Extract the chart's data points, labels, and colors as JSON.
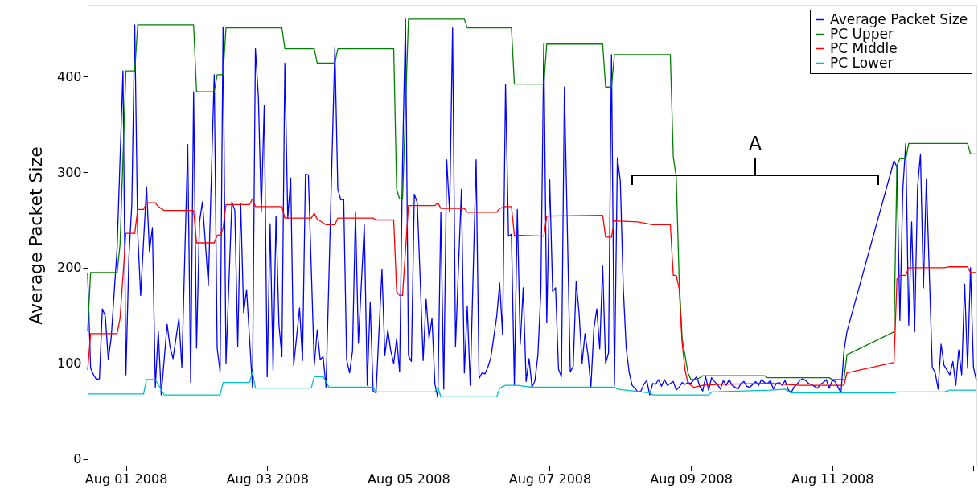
{
  "chart_data": {
    "type": "line",
    "ylabel": "Average Packet Size",
    "xlim": [
      "2008-07-31T11:00",
      "2008-08-13T01:00"
    ],
    "ylim": [
      -7,
      475
    ],
    "xticks": [
      {
        "value": "2008-08-01T00:00",
        "label": "Aug 01 2008"
      },
      {
        "value": "2008-08-03T00:00",
        "label": "Aug 03 2008"
      },
      {
        "value": "2008-08-05T00:00",
        "label": "Aug 05 2008"
      },
      {
        "value": "2008-08-07T00:00",
        "label": "Aug 07 2008"
      },
      {
        "value": "2008-08-09T00:00",
        "label": "Aug 09 2008"
      },
      {
        "value": "2008-08-11T00:00",
        "label": "Aug 11 2008"
      },
      {
        "value": "2008-08-13T00:00",
        "label": null
      }
    ],
    "yticks": [
      0,
      100,
      200,
      300,
      400
    ],
    "grid": false,
    "legend": "top right",
    "marker": "none",
    "line_style": "solid",
    "annotations": [
      "A"
    ],
    "series": [
      {
        "name": "Average Packet Size",
        "color": "#0000ff",
        "x": [
          "2008-07-31T11:00",
          "2008-07-31T12:00",
          "2008-07-31T13:00",
          "2008-07-31T14:00",
          "2008-07-31T15:00",
          "2008-07-31T16:00",
          "2008-07-31T17:00",
          "2008-07-31T18:00",
          "2008-07-31T19:00",
          "2008-07-31T21:00",
          "2008-07-31T23:00",
          "2008-08-01T00:00",
          "2008-08-01T01:00",
          "2008-08-01T02:00",
          "2008-08-01T03:00",
          "2008-08-01T04:00",
          "2008-08-01T05:00",
          "2008-08-01T07:00",
          "2008-08-01T08:00",
          "2008-08-01T09:00",
          "2008-08-01T10:00",
          "2008-08-01T11:00",
          "2008-08-01T12:00",
          "2008-08-01T14:00",
          "2008-08-01T15:00",
          "2008-08-01T16:00",
          "2008-08-01T18:00",
          "2008-08-01T19:00",
          "2008-08-01T21:00",
          "2008-08-01T22:00",
          "2008-08-01T23:00",
          "2008-08-02T00:00",
          "2008-08-02T01:00",
          "2008-08-02T02:00",
          "2008-08-02T04:00",
          "2008-08-02T06:00",
          "2008-08-02T07:00",
          "2008-08-02T08:00",
          "2008-08-02T09:00",
          "2008-08-02T10:00",
          "2008-08-02T12:00",
          "2008-08-02T13:00",
          "2008-08-02T14:00",
          "2008-08-02T15:00",
          "2008-08-02T16:00",
          "2008-08-02T17:00",
          "2008-08-02T19:00",
          "2008-08-02T20:00",
          "2008-08-02T21:00",
          "2008-08-02T22:00",
          "2008-08-02T23:00",
          "2008-08-03T00:00",
          "2008-08-03T01:00",
          "2008-08-03T02:00",
          "2008-08-03T03:00",
          "2008-08-03T04:00",
          "2008-08-03T05:00",
          "2008-08-03T06:00",
          "2008-08-03T07:00",
          "2008-08-03T08:00",
          "2008-08-03T09:00",
          "2008-08-03T11:00",
          "2008-08-03T12:00",
          "2008-08-03T13:00",
          "2008-08-03T14:00",
          "2008-08-03T16:00",
          "2008-08-03T17:00",
          "2008-08-03T18:00",
          "2008-08-03T19:00",
          "2008-08-03T20:00",
          "2008-08-03T23:00",
          "2008-08-04T00:00",
          "2008-08-04T01:00",
          "2008-08-04T02:00",
          "2008-08-04T03:00",
          "2008-08-04T04:00",
          "2008-08-04T05:00",
          "2008-08-04T06:00",
          "2008-08-04T07:00",
          "2008-08-04T09:00",
          "2008-08-04T10:00",
          "2008-08-04T11:00",
          "2008-08-04T12:00",
          "2008-08-04T13:00",
          "2008-08-04T15:00",
          "2008-08-04T16:00",
          "2008-08-04T17:00",
          "2008-08-04T18:00",
          "2008-08-04T19:00",
          "2008-08-04T20:00",
          "2008-08-04T21:00",
          "2008-08-04T22:00",
          "2008-08-04T23:00",
          "2008-08-05T00:00",
          "2008-08-05T01:00",
          "2008-08-05T02:00",
          "2008-08-05T03:00",
          "2008-08-05T04:00",
          "2008-08-05T05:00",
          "2008-08-05T06:00",
          "2008-08-05T07:00",
          "2008-08-05T08:00",
          "2008-08-05T09:00",
          "2008-08-05T10:00",
          "2008-08-05T11:00",
          "2008-08-05T12:00",
          "2008-08-05T13:00",
          "2008-08-05T14:00",
          "2008-08-05T15:00",
          "2008-08-05T16:00",
          "2008-08-05T18:00",
          "2008-08-05T19:00",
          "2008-08-05T20:00",
          "2008-08-05T21:00",
          "2008-08-05T23:00",
          "2008-08-06T00:00",
          "2008-08-06T01:00",
          "2008-08-06T02:00",
          "2008-08-06T03:00",
          "2008-08-06T04:00",
          "2008-08-06T06:00",
          "2008-08-06T07:00",
          "2008-08-06T08:00",
          "2008-08-06T09:00",
          "2008-08-06T10:00",
          "2008-08-06T11:00",
          "2008-08-06T12:00",
          "2008-08-06T13:00",
          "2008-08-06T14:00",
          "2008-08-06T15:00",
          "2008-08-06T16:00",
          "2008-08-06T17:00",
          "2008-08-06T18:00",
          "2008-08-06T19:00",
          "2008-08-06T20:00",
          "2008-08-06T21:00",
          "2008-08-06T22:00",
          "2008-08-06T23:00",
          "2008-08-07T00:00",
          "2008-08-07T01:00",
          "2008-08-07T02:00",
          "2008-08-07T03:00",
          "2008-08-07T04:00",
          "2008-08-07T05:00",
          "2008-08-07T07:00",
          "2008-08-07T08:00",
          "2008-08-07T09:00",
          "2008-08-07T10:00",
          "2008-08-07T11:00",
          "2008-08-07T12:00",
          "2008-08-07T13:00",
          "2008-08-07T14:00",
          "2008-08-07T15:00",
          "2008-08-07T16:00",
          "2008-08-07T17:00",
          "2008-08-07T18:00",
          "2008-08-07T19:00",
          "2008-08-07T20:00",
          "2008-08-07T21:00",
          "2008-08-07T22:00",
          "2008-08-07T23:00",
          "2008-08-08T00:00",
          "2008-08-08T01:00",
          "2008-08-08T02:00",
          "2008-08-08T03:00",
          "2008-08-08T04:00",
          "2008-08-08T05:00",
          "2008-08-08T06:00",
          "2008-08-08T07:00",
          "2008-08-08T08:00",
          "2008-08-08T09:00",
          "2008-08-08T10:00",
          "2008-08-08T11:00",
          "2008-08-08T12:00",
          "2008-08-08T13:00",
          "2008-08-08T14:00",
          "2008-08-08T15:00",
          "2008-08-08T16:00",
          "2008-08-08T17:00",
          "2008-08-08T18:00",
          "2008-08-08T19:00",
          "2008-08-08T20:00",
          "2008-08-08T21:00",
          "2008-08-08T22:00",
          "2008-08-08T23:00",
          "2008-08-09T00:00",
          "2008-08-09T01:00",
          "2008-08-09T02:00",
          "2008-08-09T03:00",
          "2008-08-09T04:00",
          "2008-08-09T05:00",
          "2008-08-09T06:00",
          "2008-08-09T07:00",
          "2008-08-09T08:00",
          "2008-08-09T09:00",
          "2008-08-09T10:00",
          "2008-08-09T11:00",
          "2008-08-09T12:00",
          "2008-08-09T13:00",
          "2008-08-09T14:00",
          "2008-08-09T16:00",
          "2008-08-09T17:00",
          "2008-08-09T18:00",
          "2008-08-09T19:00",
          "2008-08-09T20:00",
          "2008-08-09T21:00",
          "2008-08-09T22:00",
          "2008-08-09T23:00",
          "2008-08-10T00:00",
          "2008-08-10T01:00",
          "2008-08-10T02:00",
          "2008-08-10T03:00",
          "2008-08-10T04:00",
          "2008-08-10T05:00",
          "2008-08-10T06:00",
          "2008-08-10T07:00",
          "2008-08-10T08:00",
          "2008-08-10T09:00",
          "2008-08-10T10:00",
          "2008-08-10T11:00",
          "2008-08-10T12:00",
          "2008-08-10T13:00",
          "2008-08-10T14:00",
          "2008-08-10T15:00",
          "2008-08-10T16:00",
          "2008-08-10T18:00",
          "2008-08-10T19:00",
          "2008-08-10T20:00",
          "2008-08-10T21:00",
          "2008-08-10T22:00",
          "2008-08-10T23:00",
          "2008-08-11T00:00",
          "2008-08-11T01:00",
          "2008-08-11T03:00",
          "2008-08-11T04:00",
          "2008-08-11T05:00",
          "2008-08-11T21:00",
          "2008-08-11T22:00",
          "2008-08-11T23:00",
          "2008-08-12T00:00",
          "2008-08-12T01:00",
          "2008-08-12T02:00",
          "2008-08-12T03:00",
          "2008-08-12T04:00",
          "2008-08-12T05:00",
          "2008-08-12T06:00",
          "2008-08-12T07:00",
          "2008-08-12T08:00",
          "2008-08-12T10:00",
          "2008-08-12T11:00",
          "2008-08-12T12:00",
          "2008-08-12T13:00",
          "2008-08-12T14:00",
          "2008-08-12T15:00",
          "2008-08-12T16:00",
          "2008-08-12T17:00",
          "2008-08-12T18:00",
          "2008-08-12T19:00",
          "2008-08-12T20:00",
          "2008-08-12T21:00",
          "2008-08-12T22:00",
          "2008-08-12T23:00",
          "2008-08-13T00:00",
          "2008-08-13T01:00"
        ],
        "values": [
          194,
          95,
          88,
          83,
          84,
          157,
          149,
          104,
          127,
          220,
          406,
          88,
          210,
          266,
          454,
          237,
          171,
          285,
          217,
          242,
          75,
          134,
          67,
          141,
          117,
          105,
          147,
          96,
          329,
          80,
          384,
          116,
          248,
          269,
          182,
          402,
          116,
          91,
          452,
          100,
          269,
          260,
          118,
          267,
          153,
          177,
          75,
          429,
          379,
          259,
          370,
          86,
          246,
          93,
          254,
          140,
          107,
          414,
          252,
          294,
          98,
          158,
          103,
          298,
          297,
          98,
          135,
          104,
          107,
          75,
          430,
          282,
          271,
          272,
          104,
          90,
          113,
          258,
          121,
          245,
          77,
          164,
          71,
          69,
          198,
          108,
          135,
          113,
          100,
          126,
          91,
          312,
          460,
          108,
          102,
          277,
          268,
          188,
          103,
          167,
          126,
          147,
          78,
          64,
          258,
          73,
          313,
          258,
          451,
          118,
          282,
          90,
          160,
          77,
          313,
          84,
          90,
          89,
          96,
          106,
          149,
          184,
          130,
          392,
          233,
          235,
          77,
          261,
          120,
          179,
          81,
          105,
          75,
          82,
          109,
          176,
          434,
          143,
          292,
          175,
          179,
          94,
          86,
          389,
          91,
          97,
          186,
          152,
          100,
          131,
          109,
          75,
          136,
          157,
          115,
          202,
          100,
          111,
          423,
          77,
          315,
          291,
          179,
          116,
          91,
          77,
          74,
          70,
          71,
          78,
          82,
          67,
          79,
          78,
          83,
          76,
          83,
          77,
          79,
          81,
          72,
          75,
          80,
          78,
          80,
          79,
          83,
          86,
          76,
          71,
          86,
          72,
          85,
          81,
          78,
          73,
          82,
          77,
          83,
          77,
          73,
          79,
          81,
          76,
          75,
          78,
          81,
          77,
          83,
          80,
          79,
          82,
          73,
          79,
          80,
          77,
          82,
          73,
          69,
          75,
          78,
          82,
          84,
          82,
          79,
          76,
          74,
          78,
          80,
          83,
          74,
          82,
          81,
          69,
          113,
          133,
          312,
          305,
          145,
          282,
          330,
          140,
          248,
          133,
          284,
          319,
          179,
          293,
          96,
          90,
          73,
          120,
          98,
          93,
          88,
          102,
          77,
          114,
          88,
          183,
          95,
          200,
          96,
          82
        ]
      },
      {
        "name": "PC Upper",
        "color": "#008000",
        "x": [
          "2008-07-31T11:00",
          "2008-07-31T12:00",
          "2008-07-31T21:00",
          "2008-07-31T22:00",
          "2008-08-01T00:00",
          "2008-08-01T03:00",
          "2008-08-01T04:00",
          "2008-08-01T23:00",
          "2008-08-02T00:00",
          "2008-08-02T06:00",
          "2008-08-02T07:00",
          "2008-08-02T09:00",
          "2008-08-02T10:00",
          "2008-08-03T05:00",
          "2008-08-03T06:00",
          "2008-08-03T16:00",
          "2008-08-03T17:00",
          "2008-08-03T23:00",
          "2008-08-04T00:00",
          "2008-08-04T19:00",
          "2008-08-04T20:00",
          "2008-08-04T21:00",
          "2008-08-04T22:00",
          "2008-08-05T00:00",
          "2008-08-05T19:00",
          "2008-08-05T20:00",
          "2008-08-06T11:00",
          "2008-08-06T12:00",
          "2008-08-06T22:00",
          "2008-08-06T23:00",
          "2008-08-07T18:00",
          "2008-08-07T19:00",
          "2008-08-07T21:00",
          "2008-08-07T22:00",
          "2008-08-08T17:00",
          "2008-08-08T18:00",
          "2008-08-08T19:00",
          "2008-08-08T20:00",
          "2008-08-08T21:00",
          "2008-08-08T23:00",
          "2008-08-09T00:00",
          "2008-08-09T02:00",
          "2008-08-09T04:00",
          "2008-08-10T01:00",
          "2008-08-10T02:00",
          "2008-08-10T23:00",
          "2008-08-11T00:00",
          "2008-08-11T04:00",
          "2008-08-11T05:00",
          "2008-08-11T21:00",
          "2008-08-11T22:00",
          "2008-08-11T23:00",
          "2008-08-12T01:00",
          "2008-08-12T02:00",
          "2008-08-12T22:00",
          "2008-08-12T23:00",
          "2008-08-13T01:00"
        ],
        "values": [
          134,
          195,
          195,
          224,
          406,
          406,
          454,
          454,
          384,
          384,
          402,
          402,
          451,
          451,
          429,
          429,
          414,
          414,
          429,
          429,
          282,
          272,
          272,
          460,
          460,
          451,
          451,
          392,
          392,
          434,
          434,
          389,
          389,
          423,
          423,
          316,
          295,
          188,
          126,
          90,
          83,
          83,
          87,
          87,
          85,
          85,
          83,
          83,
          109,
          133,
          307,
          314,
          314,
          330,
          330,
          319,
          319
        ]
      },
      {
        "name": "PC Middle",
        "color": "#ff0000",
        "x": [
          "2008-07-31T11:00",
          "2008-07-31T12:00",
          "2008-07-31T21:00",
          "2008-07-31T22:00",
          "2008-08-01T00:00",
          "2008-08-01T03:00",
          "2008-08-01T04:00",
          "2008-08-01T06:00",
          "2008-08-01T07:00",
          "2008-08-01T10:00",
          "2008-08-01T11:00",
          "2008-08-01T13:00",
          "2008-08-01T23:00",
          "2008-08-02T00:00",
          "2008-08-02T06:00",
          "2008-08-02T07:00",
          "2008-08-02T08:00",
          "2008-08-02T09:00",
          "2008-08-02T10:00",
          "2008-08-02T18:00",
          "2008-08-02T19:00",
          "2008-08-02T20:00",
          "2008-08-03T05:00",
          "2008-08-03T06:00",
          "2008-08-03T15:00",
          "2008-08-03T16:00",
          "2008-08-03T17:00",
          "2008-08-03T20:00",
          "2008-08-03T23:00",
          "2008-08-04T00:00",
          "2008-08-04T12:00",
          "2008-08-04T13:00",
          "2008-08-04T19:00",
          "2008-08-04T20:00",
          "2008-08-04T21:00",
          "2008-08-04T22:00",
          "2008-08-05T00:00",
          "2008-08-05T09:00",
          "2008-08-05T10:00",
          "2008-08-05T11:00",
          "2008-08-05T19:00",
          "2008-08-05T20:00",
          "2008-08-06T06:00",
          "2008-08-06T07:00",
          "2008-08-06T09:00",
          "2008-08-06T11:00",
          "2008-08-06T12:00",
          "2008-08-06T22:00",
          "2008-08-06T23:00",
          "2008-08-07T18:00",
          "2008-08-07T19:00",
          "2008-08-07T21:00",
          "2008-08-07T22:00",
          "2008-08-08T06:00",
          "2008-08-08T11:00",
          "2008-08-08T17:00",
          "2008-08-08T18:00",
          "2008-08-08T19:00",
          "2008-08-08T20:00",
          "2008-08-08T21:00",
          "2008-08-08T22:00",
          "2008-08-08T23:00",
          "2008-08-09T01:00",
          "2008-08-09T04:00",
          "2008-08-09T10:00",
          "2008-08-10T03:00",
          "2008-08-10T13:00",
          "2008-08-11T04:00",
          "2008-08-11T05:00",
          "2008-08-11T21:00",
          "2008-08-11T22:00",
          "2008-08-11T23:00",
          "2008-08-12T01:00",
          "2008-08-12T02:00",
          "2008-08-12T14:00",
          "2008-08-12T16:00",
          "2008-08-12T22:00",
          "2008-08-12T23:00",
          "2008-08-13T01:00"
        ],
        "values": [
          93,
          131,
          131,
          147,
          236,
          236,
          261,
          261,
          268,
          268,
          264,
          260,
          260,
          226,
          226,
          234,
          234,
          241,
          266,
          266,
          272,
          264,
          264,
          252,
          252,
          257,
          251,
          245,
          245,
          252,
          252,
          250,
          250,
          175,
          171,
          171,
          265,
          265,
          268,
          262,
          262,
          258,
          258,
          262,
          264,
          264,
          234,
          233,
          254,
          255,
          232,
          232,
          249,
          248,
          245,
          245,
          192,
          192,
          178,
          122,
          93,
          79,
          75,
          77,
          78,
          79,
          77,
          77,
          90,
          101,
          188,
          192,
          192,
          200,
          200,
          201,
          201,
          195,
          195
        ]
      },
      {
        "name": "PC Lower",
        "color": "#00bfbf",
        "x": [
          "2008-07-31T11:00",
          "2008-08-01T06:00",
          "2008-08-01T07:00",
          "2008-08-01T10:00",
          "2008-08-01T13:00",
          "2008-08-02T08:00",
          "2008-08-02T09:00",
          "2008-08-02T18:00",
          "2008-08-02T19:00",
          "2008-08-02T20:00",
          "2008-08-03T15:00",
          "2008-08-03T16:00",
          "2008-08-03T19:00",
          "2008-08-03T21:00",
          "2008-08-04T12:00",
          "2008-08-04T13:00",
          "2008-08-05T09:00",
          "2008-08-05T10:00",
          "2008-08-05T11:00",
          "2008-08-06T06:00",
          "2008-08-06T07:00",
          "2008-08-06T09:00",
          "2008-08-06T13:00",
          "2008-08-06T18:00",
          "2008-08-07T22:00",
          "2008-08-07T23:00",
          "2008-08-08T10:00",
          "2008-08-08T11:00",
          "2008-08-09T06:00",
          "2008-08-09T07:00",
          "2008-08-10T03:00",
          "2008-08-10T08:00",
          "2008-08-10T10:00",
          "2008-08-11T21:00",
          "2008-08-11T22:00",
          "2008-08-12T14:00",
          "2008-08-12T16:00",
          "2008-08-13T01:00"
        ],
        "values": [
          68,
          68,
          83,
          83,
          67,
          67,
          80,
          80,
          91,
          74,
          74,
          86,
          86,
          75,
          75,
          70,
          70,
          75,
          65,
          65,
          74,
          77,
          77,
          75,
          75,
          73,
          69,
          67,
          67,
          70,
          72,
          73,
          69,
          69,
          70,
          70,
          72,
          72
        ]
      }
    ]
  }
}
